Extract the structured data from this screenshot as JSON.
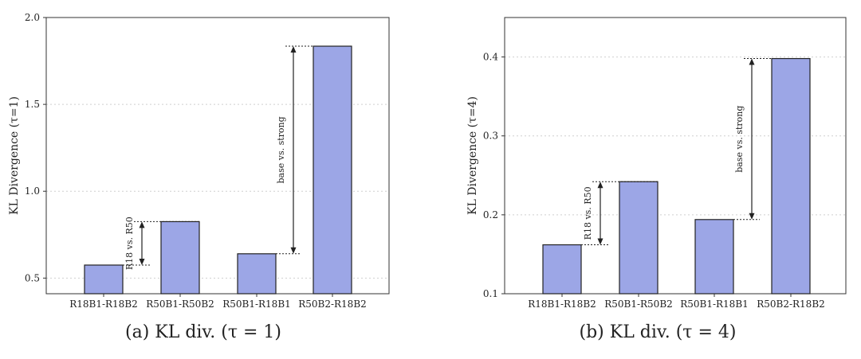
{
  "chart_data": [
    {
      "type": "bar",
      "categories": [
        "R18B1-R18B2",
        "R50B1-R50B2",
        "R50B1-R18B1",
        "R50B2-R18B2"
      ],
      "values": [
        0.575,
        0.825,
        0.64,
        1.835
      ],
      "ylabel": "KL Divergence (τ=1)",
      "ylim": [
        0.41,
        2.0
      ],
      "yticks": [
        0.5,
        1.0,
        1.5,
        2.0
      ],
      "ytick_labels": [
        "0.5",
        "1.0",
        "1.5",
        "2.0"
      ],
      "grid": true,
      "caption": "(a)  KL div. (τ = 1)",
      "annotations": [
        {
          "text": "R18 vs. R50",
          "from": 0.575,
          "to": 0.825
        },
        {
          "text": "base vs. strong",
          "from": 0.64,
          "to": 1.835
        }
      ]
    },
    {
      "type": "bar",
      "categories": [
        "R18B1-R18B2",
        "R50B1-R50B2",
        "R50B1-R18B1",
        "R50B2-R18B2"
      ],
      "values": [
        0.162,
        0.242,
        0.194,
        0.398
      ],
      "ylabel": "KL Divergence (τ=4)",
      "ylim": [
        0.1,
        0.45
      ],
      "yticks": [
        0.1,
        0.2,
        0.3,
        0.4
      ],
      "ytick_labels": [
        "0.1",
        "0.2",
        "0.3",
        "0.4"
      ],
      "grid": true,
      "caption": "(b)  KL div. (τ = 4)",
      "annotations": [
        {
          "text": "R18 vs. R50",
          "from": 0.162,
          "to": 0.242
        },
        {
          "text": "base vs. strong",
          "from": 0.194,
          "to": 0.398
        }
      ]
    }
  ]
}
